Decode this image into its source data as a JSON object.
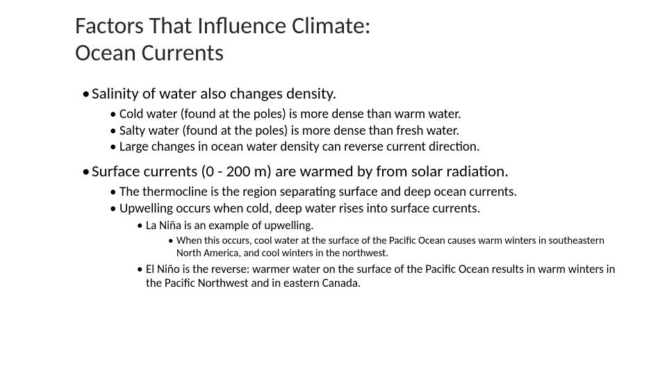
{
  "title_line1": "Factors That Influence Climate:",
  "title_line2": "Ocean Currents",
  "b1": "Salinity of water also changes density.",
  "b1_1": "Cold water (found at the poles) is more dense than warm water.",
  "b1_2": "Salty water (found at the poles) is more dense than fresh water.",
  "b1_3": "Large changes in ocean water density can reverse current direction.",
  "b2": "Surface currents (0 - 200 m) are warmed by from solar radiation.",
  "b2_1": "The thermocline is the region separating surface and deep ocean currents.",
  "b2_2": "Upwelling occurs when cold, deep water rises into surface currents.",
  "b2_2_1": "La Niña is an example of upwelling.",
  "b2_2_1_1": "When this occurs, cool water at the surface of the Pacific Ocean causes warm winters in southeastern North America, and cool winters in the northwest.",
  "b2_2_2": "El Niño is the reverse: warmer water on the surface of the Pacific Ocean results in warm winters in the Pacific Northwest  and in eastern Canada.",
  "colors": {
    "background": "#ffffff",
    "title_text": "#262626",
    "body_text": "#000000"
  },
  "fontsizes_pt": {
    "title": 34,
    "lvl1": 23,
    "lvl2": 19,
    "lvl3": 17,
    "lvl4": 15
  }
}
